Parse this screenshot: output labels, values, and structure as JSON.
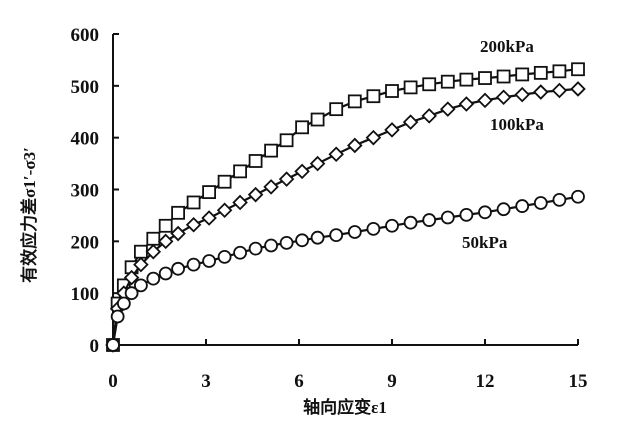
{
  "chart_data": {
    "type": "line",
    "title": "",
    "xlabel": "轴向应变ε1",
    "ylabel": "有效应力差σ1′-σ3′",
    "xlim": [
      0,
      15
    ],
    "ylim": [
      0,
      600
    ],
    "xticks": [
      0,
      3,
      6,
      9,
      12,
      15
    ],
    "yticks": [
      0,
      100,
      200,
      300,
      400,
      500,
      600
    ],
    "x_tick_labels": [
      "0",
      "3",
      "6",
      "9",
      "12",
      "15"
    ],
    "y_tick_labels": [
      "0",
      "100",
      "200",
      "300",
      "400",
      "500",
      "600"
    ],
    "grid": false,
    "legend": "none",
    "series": [
      {
        "name": "200kPa",
        "marker": "square",
        "x": [
          0,
          0.15,
          0.35,
          0.6,
          0.9,
          1.3,
          1.7,
          2.1,
          2.6,
          3.1,
          3.6,
          4.1,
          4.6,
          5.1,
          5.6,
          6.1,
          6.6,
          7.2,
          7.8,
          8.4,
          9.0,
          9.6,
          10.2,
          10.8,
          11.4,
          12.0,
          12.6,
          13.2,
          13.8,
          14.4,
          15.0
        ],
        "y": [
          0,
          80,
          115,
          150,
          180,
          205,
          230,
          255,
          275,
          295,
          315,
          335,
          355,
          375,
          395,
          420,
          435,
          455,
          470,
          480,
          490,
          497,
          503,
          508,
          512,
          515,
          518,
          522,
          525,
          528,
          532
        ]
      },
      {
        "name": "100kPa",
        "marker": "diamond",
        "x": [
          0,
          0.15,
          0.35,
          0.6,
          0.9,
          1.3,
          1.7,
          2.1,
          2.6,
          3.1,
          3.6,
          4.1,
          4.6,
          5.1,
          5.6,
          6.1,
          6.6,
          7.2,
          7.8,
          8.4,
          9.0,
          9.6,
          10.2,
          10.8,
          11.4,
          12.0,
          12.6,
          13.2,
          13.8,
          14.4,
          15.0
        ],
        "y": [
          0,
          70,
          100,
          130,
          155,
          180,
          200,
          215,
          232,
          245,
          260,
          275,
          290,
          305,
          320,
          335,
          350,
          368,
          385,
          400,
          415,
          430,
          442,
          455,
          465,
          472,
          478,
          483,
          488,
          491,
          494
        ]
      },
      {
        "name": "50kPa",
        "marker": "circle",
        "x": [
          0,
          0.15,
          0.35,
          0.6,
          0.9,
          1.3,
          1.7,
          2.1,
          2.6,
          3.1,
          3.6,
          4.1,
          4.6,
          5.1,
          5.6,
          6.1,
          6.6,
          7.2,
          7.8,
          8.4,
          9.0,
          9.6,
          10.2,
          10.8,
          11.4,
          12.0,
          12.6,
          13.2,
          13.8,
          14.4,
          15.0
        ],
        "y": [
          0,
          55,
          80,
          100,
          115,
          128,
          138,
          147,
          155,
          162,
          170,
          178,
          186,
          192,
          197,
          202,
          207,
          212,
          218,
          224,
          230,
          236,
          241,
          246,
          251,
          256,
          262,
          268,
          274,
          280,
          286
        ]
      }
    ]
  }
}
